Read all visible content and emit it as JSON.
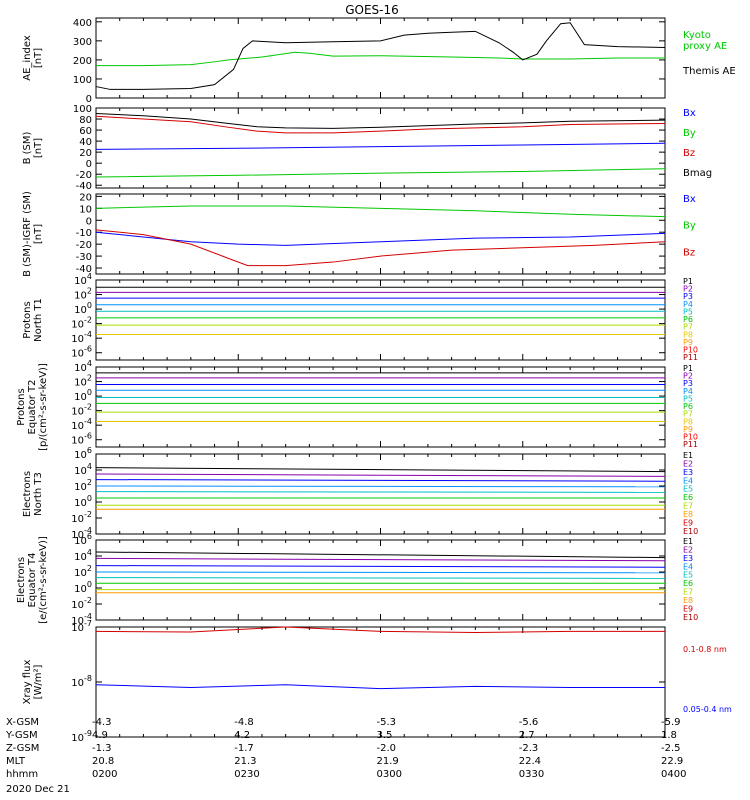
{
  "title": "GOES-16",
  "date": "2020 Dec 21",
  "colors": {
    "black": "#000000",
    "green": "#00c800",
    "blue": "#0000ff",
    "red": "#d40000"
  },
  "footer": {
    "rows": [
      {
        "label": "X-GSM",
        "values": [
          "-4.3",
          "-4.8",
          "-5.3",
          "-5.6",
          "-5.9"
        ]
      },
      {
        "label": "Y-GSM",
        "values": [
          "4.9",
          "4.2",
          "3.5",
          "2.7",
          "1.8"
        ]
      },
      {
        "label": "Z-GSM",
        "values": [
          "-1.3",
          "-1.7",
          "-2.0",
          "-2.3",
          "-2.5"
        ]
      },
      {
        "label": "MLT",
        "values": [
          "20.8",
          "21.3",
          "21.9",
          "22.4",
          "22.9"
        ]
      },
      {
        "label": "hhmm",
        "values": [
          "0200",
          "0230",
          "0300",
          "0330",
          "0400"
        ]
      }
    ]
  },
  "chart_data": [
    {
      "type": "line",
      "ylabel": "AE_index\n[nT]",
      "ylim": [
        0,
        420
      ],
      "ticks": [
        0,
        100,
        200,
        300,
        400
      ],
      "tick_labels": [
        "0",
        "100",
        "200",
        "300",
        "400"
      ],
      "x_minutes": [
        0,
        120
      ],
      "series": [
        {
          "name": "Kyoto proxy AE",
          "legend": [
            "Kyoto",
            "proxy AE"
          ],
          "color": "#00c800",
          "points": [
            [
              0,
              170
            ],
            [
              10,
              170
            ],
            [
              20,
              175
            ],
            [
              25,
              190
            ],
            [
              28,
              200
            ],
            [
              35,
              215
            ],
            [
              42,
              240
            ],
            [
              45,
              235
            ],
            [
              50,
              220
            ],
            [
              60,
              222
            ],
            [
              75,
              215
            ],
            [
              85,
              210
            ],
            [
              90,
              205
            ],
            [
              100,
              205
            ],
            [
              110,
              210
            ],
            [
              120,
              210
            ]
          ]
        },
        {
          "name": "Themis AE",
          "legend": [
            "Themis AE"
          ],
          "color": "#000000",
          "points": [
            [
              0,
              60
            ],
            [
              3,
              45
            ],
            [
              10,
              45
            ],
            [
              20,
              50
            ],
            [
              25,
              70
            ],
            [
              29,
              150
            ],
            [
              31,
              260
            ],
            [
              33,
              300
            ],
            [
              40,
              290
            ],
            [
              50,
              295
            ],
            [
              60,
              300
            ],
            [
              65,
              330
            ],
            [
              70,
              340
            ],
            [
              75,
              345
            ],
            [
              80,
              350
            ],
            [
              85,
              290
            ],
            [
              88,
              240
            ],
            [
              90,
              200
            ],
            [
              93,
              230
            ],
            [
              95,
              300
            ],
            [
              98,
              390
            ],
            [
              100,
              395
            ],
            [
              103,
              280
            ],
            [
              110,
              270
            ],
            [
              120,
              265
            ]
          ]
        }
      ]
    },
    {
      "type": "line",
      "ylabel": "B (SM)\n[nT]",
      "ylim": [
        -45,
        100
      ],
      "ticks": [
        -40,
        -20,
        0,
        20,
        40,
        60,
        80,
        100
      ],
      "tick_labels": [
        "-40",
        "-20",
        "0",
        "20",
        "40",
        "60",
        "80",
        "100"
      ],
      "series": [
        {
          "name": "Bx",
          "color": "#0000ff",
          "points": [
            [
              0,
              25
            ],
            [
              30,
              27
            ],
            [
              40,
              28
            ],
            [
              60,
              30
            ],
            [
              90,
              33
            ],
            [
              120,
              36
            ]
          ]
        },
        {
          "name": "By",
          "color": "#00c800",
          "points": [
            [
              0,
              -25
            ],
            [
              30,
              -22
            ],
            [
              60,
              -18
            ],
            [
              90,
              -15
            ],
            [
              120,
              -10
            ]
          ]
        },
        {
          "name": "Bz",
          "color": "#d40000",
          "points": [
            [
              0,
              85
            ],
            [
              10,
              80
            ],
            [
              20,
              75
            ],
            [
              28,
              65
            ],
            [
              34,
              58
            ],
            [
              40,
              55
            ],
            [
              50,
              55
            ],
            [
              60,
              58
            ],
            [
              70,
              62
            ],
            [
              80,
              64
            ],
            [
              90,
              66
            ],
            [
              100,
              70
            ],
            [
              120,
              72
            ]
          ]
        },
        {
          "name": "Bmag",
          "color": "#000000",
          "points": [
            [
              0,
              90
            ],
            [
              10,
              86
            ],
            [
              20,
              80
            ],
            [
              28,
              72
            ],
            [
              34,
              66
            ],
            [
              40,
              64
            ],
            [
              50,
              63
            ],
            [
              60,
              65
            ],
            [
              70,
              68
            ],
            [
              80,
              71
            ],
            [
              90,
              73
            ],
            [
              100,
              76
            ],
            [
              120,
              78
            ]
          ]
        }
      ]
    },
    {
      "type": "line",
      "ylabel": "B (SM)-IGRF (SM)\n[nT]",
      "ylim": [
        -45,
        22
      ],
      "ticks": [
        -40,
        -30,
        -20,
        -10,
        0,
        10,
        20
      ],
      "tick_labels": [
        "-40",
        "-30",
        "-20",
        "-10",
        "0",
        "10",
        "20"
      ],
      "series": [
        {
          "name": "Bx",
          "color": "#0000ff",
          "points": [
            [
              0,
              -10
            ],
            [
              10,
              -14
            ],
            [
              20,
              -18
            ],
            [
              30,
              -20
            ],
            [
              40,
              -21
            ],
            [
              60,
              -18
            ],
            [
              80,
              -15
            ],
            [
              100,
              -14
            ],
            [
              120,
              -11
            ]
          ]
        },
        {
          "name": "By",
          "color": "#00c800",
          "points": [
            [
              0,
              10
            ],
            [
              20,
              12
            ],
            [
              40,
              12
            ],
            [
              60,
              10
            ],
            [
              80,
              8
            ],
            [
              100,
              5
            ],
            [
              120,
              3
            ]
          ]
        },
        {
          "name": "Bz",
          "color": "#d40000",
          "points": [
            [
              0,
              -8
            ],
            [
              10,
              -12
            ],
            [
              20,
              -20
            ],
            [
              28,
              -32
            ],
            [
              32,
              -38
            ],
            [
              40,
              -38
            ],
            [
              50,
              -35
            ],
            [
              60,
              -30
            ],
            [
              75,
              -25
            ],
            [
              90,
              -23
            ],
            [
              105,
              -21
            ],
            [
              120,
              -18
            ]
          ]
        }
      ]
    },
    {
      "type": "line",
      "scale": "log",
      "ylabel": "Protons\nNorth T1",
      "ylim_log": [
        -7,
        4
      ],
      "ticks": [
        -6,
        -4,
        -2,
        0,
        2,
        4
      ],
      "tick_labels": [
        "10^-6",
        "10^-4",
        "10^-2",
        "10^0",
        "10^2",
        "10^4"
      ],
      "series": [
        {
          "name": "P1",
          "color": "#000000",
          "log": [
            3.0,
            3.0
          ]
        },
        {
          "name": "P2",
          "color": "#8800aa",
          "log": [
            2.3,
            2.3
          ]
        },
        {
          "name": "P3",
          "color": "#0000ff",
          "log": [
            1.5,
            1.5
          ]
        },
        {
          "name": "P4",
          "color": "#0090ff",
          "log": [
            0.6,
            0.6
          ]
        },
        {
          "name": "P5",
          "color": "#00c0c0",
          "log": [
            -0.3,
            -0.3
          ]
        },
        {
          "name": "P6",
          "color": "#00c800",
          "log": [
            -1.2,
            -1.2
          ]
        },
        {
          "name": "P7",
          "color": "#aadd00",
          "log": [
            -2.2,
            -2.2
          ]
        },
        {
          "name": "P8",
          "color": "#e6c800",
          "log": [
            -3.5,
            -3.5
          ]
        },
        {
          "name": "P9",
          "color": "#ff9900",
          "log": null
        },
        {
          "name": "P10",
          "color": "#ff0000",
          "log": null
        },
        {
          "name": "P11",
          "color": "#aa0000",
          "log": null
        }
      ]
    },
    {
      "type": "line",
      "scale": "log",
      "ylabel": "Protons\nEquator T2\n[p/(cm²-s-sr-keV)]",
      "ylim_log": [
        -7,
        4
      ],
      "ticks": [
        -6,
        -4,
        -2,
        0,
        2,
        4
      ],
      "tick_labels": [
        "10^-6",
        "10^-4",
        "10^-2",
        "10^0",
        "10^2",
        "10^4"
      ],
      "series": [
        {
          "name": "P1",
          "color": "#000000",
          "log": [
            3.2,
            3.2
          ]
        },
        {
          "name": "P2",
          "color": "#8800aa",
          "log": [
            2.5,
            2.5
          ]
        },
        {
          "name": "P3",
          "color": "#0000ff",
          "log": [
            1.6,
            1.6
          ]
        },
        {
          "name": "P4",
          "color": "#0090ff",
          "log": [
            0.8,
            0.8
          ]
        },
        {
          "name": "P5",
          "color": "#00c0c0",
          "log": [
            -0.2,
            -0.2
          ]
        },
        {
          "name": "P6",
          "color": "#00c800",
          "log": [
            -1.0,
            -1.0
          ]
        },
        {
          "name": "P7",
          "color": "#aadd00",
          "log": [
            -2.2,
            -2.2
          ]
        },
        {
          "name": "P8",
          "color": "#e6c800",
          "log": [
            -3.5,
            -3.5
          ]
        },
        {
          "name": "P9",
          "color": "#ff9900",
          "log": null
        },
        {
          "name": "P10",
          "color": "#ff0000",
          "log": null
        },
        {
          "name": "P11",
          "color": "#aa0000",
          "log": null
        }
      ]
    },
    {
      "type": "line",
      "scale": "log",
      "ylabel": "Electrons\nNorth T3",
      "ylim_log": [
        -4,
        6
      ],
      "ticks": [
        -4,
        -2,
        0,
        2,
        4,
        6
      ],
      "tick_labels": [
        "10^-4",
        "10^-2",
        "10^0",
        "10^2",
        "10^4",
        "10^6"
      ],
      "series": [
        {
          "name": "E1",
          "color": "#000000",
          "log": [
            4.3,
            3.8
          ]
        },
        {
          "name": "E2",
          "color": "#8800aa",
          "log": [
            3.5,
            3.2
          ]
        },
        {
          "name": "E3",
          "color": "#0000ff",
          "log": [
            2.8,
            2.6
          ]
        },
        {
          "name": "E4",
          "color": "#0090ff",
          "log": [
            2.0,
            1.9
          ]
        },
        {
          "name": "E5",
          "color": "#00c0c0",
          "log": [
            1.3,
            1.2
          ]
        },
        {
          "name": "E6",
          "color": "#00c800",
          "log": [
            0.5,
            0.5
          ]
        },
        {
          "name": "E7",
          "color": "#aadd00",
          "log": [
            -0.4,
            -0.4
          ]
        },
        {
          "name": "E8",
          "color": "#ff9900",
          "log": [
            -0.9,
            -0.9
          ]
        },
        {
          "name": "E9",
          "color": "#d40000",
          "log": null
        },
        {
          "name": "E10",
          "color": "#aa0000",
          "log": null
        }
      ]
    },
    {
      "type": "line",
      "scale": "log",
      "ylabel": "Electrons\nEquator T4\n[e/(cm²-s-sr-keV)]",
      "ylim_log": [
        -4,
        6
      ],
      "ticks": [
        -4,
        -2,
        0,
        2,
        4,
        6
      ],
      "tick_labels": [
        "10^-4",
        "10^-2",
        "10^0",
        "10^2",
        "10^4",
        "10^6"
      ],
      "series": [
        {
          "name": "E1",
          "color": "#000000",
          "log": [
            4.5,
            3.8
          ]
        },
        {
          "name": "E2",
          "color": "#8800aa",
          "log": [
            3.7,
            3.4
          ]
        },
        {
          "name": "E3",
          "color": "#0000ff",
          "log": [
            2.8,
            2.6
          ]
        },
        {
          "name": "E4",
          "color": "#0090ff",
          "log": [
            2.0,
            1.9
          ]
        },
        {
          "name": "E5",
          "color": "#00c0c0",
          "log": [
            1.3,
            1.2
          ]
        },
        {
          "name": "E6",
          "color": "#00c800",
          "log": [
            0.6,
            0.6
          ]
        },
        {
          "name": "E7",
          "color": "#aadd00",
          "log": [
            -0.2,
            -0.2
          ]
        },
        {
          "name": "E8",
          "color": "#ff9900",
          "log": [
            -0.6,
            -0.6
          ]
        },
        {
          "name": "E9",
          "color": "#d40000",
          "log": null
        },
        {
          "name": "E10",
          "color": "#aa0000",
          "log": null
        }
      ]
    },
    {
      "type": "line",
      "scale": "log",
      "ylabel": "Xray flux\n[W/m²]",
      "ylim_log": [
        -9,
        -7
      ],
      "ticks": [
        -9,
        -8,
        -7
      ],
      "tick_labels": [
        "10^-9",
        "10^-8",
        "10^-7"
      ],
      "series": [
        {
          "name": "0.1-0.8 nm",
          "legend": [
            "0.1-0.8 nm"
          ],
          "color": "#d40000",
          "log_points": [
            [
              0,
              -7.08
            ],
            [
              20,
              -7.09
            ],
            [
              40,
              -7.0
            ],
            [
              60,
              -7.08
            ],
            [
              80,
              -7.1
            ],
            [
              100,
              -7.08
            ],
            [
              120,
              -7.08
            ]
          ]
        },
        {
          "name": "0.05-0.4 nm",
          "legend": [
            "0.05-0.4 nm"
          ],
          "color": "#0000ff",
          "log_points": [
            [
              0,
              -8.05
            ],
            [
              20,
              -8.1
            ],
            [
              40,
              -8.05
            ],
            [
              60,
              -8.12
            ],
            [
              80,
              -8.08
            ],
            [
              100,
              -8.1
            ],
            [
              120,
              -8.1
            ]
          ]
        }
      ]
    }
  ]
}
